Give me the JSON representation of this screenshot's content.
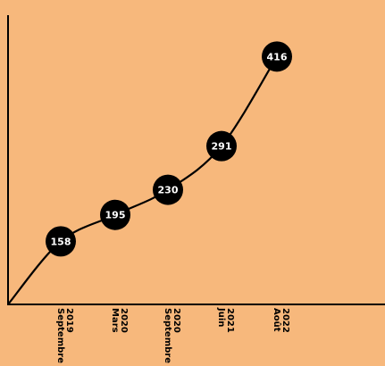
{
  "chart_data": {
    "type": "line",
    "title": "",
    "xlabel": "",
    "ylabel": "",
    "categories": [
      [
        "Septembre",
        "2019"
      ],
      [
        "Mars",
        "2020"
      ],
      [
        "Septembre",
        "2020"
      ],
      [
        "Juin",
        "2021"
      ],
      [
        "Août",
        "2022"
      ]
    ],
    "series": [
      {
        "values": [
          158,
          195,
          230,
          291,
          416
        ]
      }
    ],
    "ylim": [
      70,
      470
    ],
    "grid": false,
    "legend": "none",
    "colors": {
      "background": "#f7b87c",
      "line": "#000000",
      "marker": "#000000",
      "label": "#ffffff"
    }
  }
}
